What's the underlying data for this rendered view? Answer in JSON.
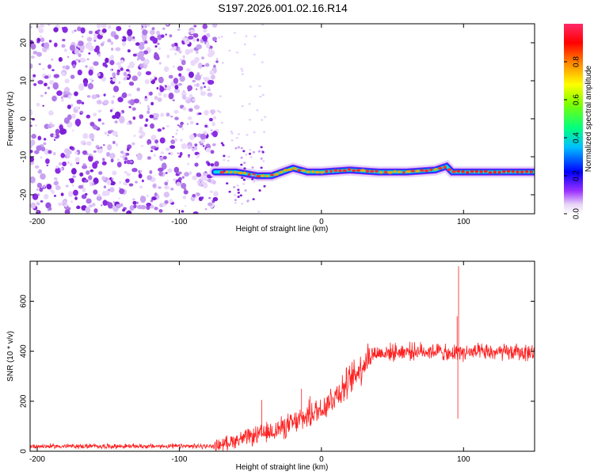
{
  "figure": {
    "title": "S197.2026.001.02.16.R14"
  },
  "chart_data": [
    {
      "type": "heatmap",
      "xlabel": "Height of straight line (km)",
      "ylabel": "Frequency (Hz)",
      "xlim": [
        -205,
        150
      ],
      "ylim": [
        -25,
        25
      ],
      "x_ticks": [
        "-200",
        "-100",
        "0",
        "100"
      ],
      "y_ticks": [
        "-20",
        "-10",
        "0",
        "10",
        "20"
      ],
      "colorbar": {
        "label": "Normalized spectral amplitude",
        "range": [
          0,
          1
        ],
        "ticks": [
          "0.0",
          "0.2",
          "0.4",
          "0.6",
          "0.8"
        ],
        "colors": [
          "#ffffff",
          "#dcc6f5",
          "#8a2be2",
          "#0000ff",
          "#00ffff",
          "#00ff00",
          "#ffff00",
          "#ff8c00",
          "#ff0000",
          "#ff1493"
        ]
      },
      "noise_region_x": [
        -205,
        -73
      ],
      "signal_track": {
        "description_points_x": [
          -75,
          -60,
          -45,
          -35,
          -20,
          -10,
          0,
          20,
          40,
          60,
          80,
          88,
          92,
          100,
          120,
          150
        ],
        "frequency_hz": [
          -14,
          -14,
          -15,
          -15,
          -13,
          -14,
          -14,
          -13.5,
          -14,
          -14,
          -13.5,
          -12.5,
          -14,
          -14,
          -14,
          -14
        ]
      }
    },
    {
      "type": "line",
      "xlabel": "Height of straight line (km)",
      "ylabel": "SNR (10 * v/v)",
      "xlim": [
        -205,
        150
      ],
      "ylim": [
        0,
        760
      ],
      "x_ticks": [
        "-200",
        "-100",
        "0",
        "100"
      ],
      "y_ticks": [
        "0",
        "200",
        "400",
        "600"
      ],
      "series_color": "#ff2020",
      "trend": {
        "x": [
          -205,
          -75,
          -60,
          -40,
          -20,
          0,
          20,
          35,
          60,
          85,
          90,
          95,
          100,
          150
        ],
        "y": [
          20,
          20,
          45,
          70,
          110,
          170,
          280,
          390,
          400,
          400,
          380,
          400,
          395,
          395
        ]
      },
      "spikes": [
        {
          "x": 96.5,
          "y": 740
        },
        {
          "x": 95.5,
          "y": 540
        },
        {
          "x": 96.0,
          "y": 130
        },
        {
          "x": -42,
          "y": 205
        },
        {
          "x": -14,
          "y": 250
        },
        {
          "x": -8,
          "y": 220
        }
      ]
    }
  ]
}
